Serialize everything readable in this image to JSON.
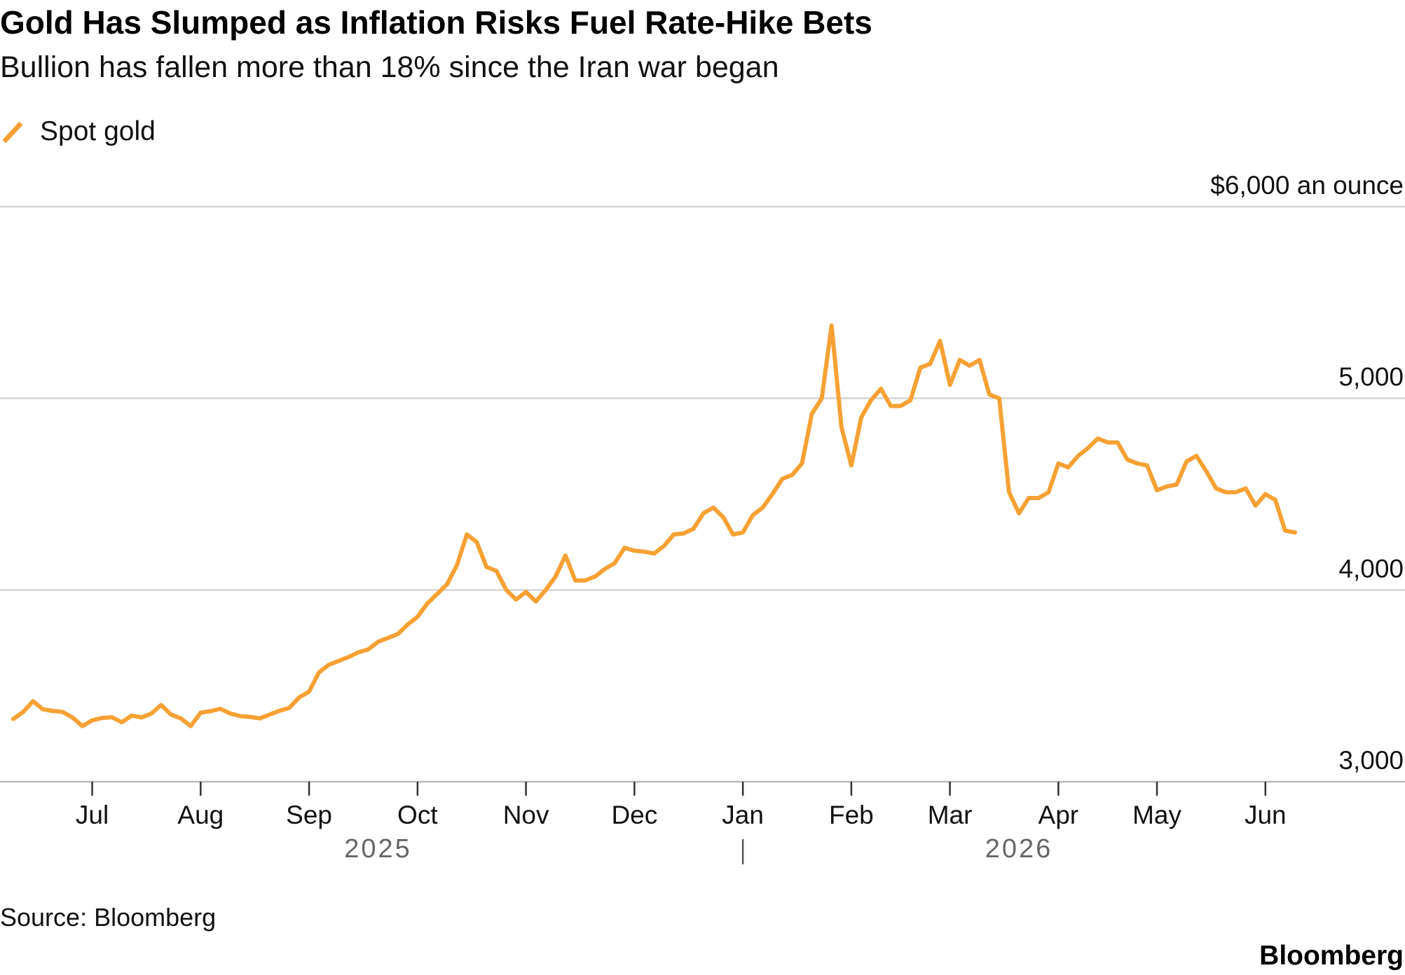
{
  "chart_data": {
    "type": "line",
    "title": "Gold Has Slumped as Inflation Risks Fuel Rate-Hike Bets",
    "subtitle": "Bullion has fallen more than 18% since the Iran war began",
    "source": "Source: Bloomberg",
    "brand": "Bloomberg",
    "categories": [
      null,
      null,
      null,
      null,
      null,
      null,
      null,
      null,
      "Jul",
      null,
      null,
      null,
      null,
      null,
      null,
      null,
      null,
      null,
      null,
      "Aug",
      null,
      null,
      null,
      null,
      null,
      null,
      null,
      null,
      null,
      null,
      "Sep",
      null,
      null,
      null,
      null,
      null,
      null,
      null,
      null,
      null,
      null,
      "Oct",
      null,
      null,
      null,
      null,
      null,
      null,
      null,
      null,
      null,
      null,
      "Nov",
      null,
      null,
      null,
      null,
      null,
      null,
      null,
      null,
      null,
      null,
      "Dec",
      null,
      null,
      null,
      null,
      null,
      null,
      null,
      null,
      null,
      null,
      "Jan",
      null,
      null,
      null,
      null,
      null,
      null,
      null,
      null,
      null,
      null,
      "Feb",
      null,
      null,
      null,
      null,
      null,
      null,
      null,
      null,
      null,
      "Mar",
      null,
      null,
      null,
      null,
      null,
      null,
      null,
      null,
      null,
      null,
      "Apr",
      null,
      null,
      null,
      null,
      null,
      null,
      null,
      null,
      null,
      "May",
      null,
      null,
      null,
      null,
      null,
      null,
      null,
      null,
      null,
      null,
      "Jun",
      null,
      null,
      null
    ],
    "x_groups": [
      {
        "label": "2025",
        "range": [
          0,
          74
        ]
      },
      {
        "label": "2026",
        "range": [
          74,
          130
        ]
      }
    ],
    "series": [
      {
        "name": "Spot gold",
        "color": "#f7a134",
        "values": [
          3327,
          3364,
          3420,
          3378,
          3369,
          3364,
          3335,
          3290,
          3320,
          3332,
          3336,
          3310,
          3345,
          3335,
          3355,
          3400,
          3350,
          3330,
          3290,
          3360,
          3368,
          3380,
          3356,
          3342,
          3338,
          3330,
          3350,
          3370,
          3385,
          3440,
          3470,
          3570,
          3610,
          3630,
          3650,
          3675,
          3690,
          3730,
          3750,
          3770,
          3820,
          3860,
          3930,
          3980,
          4030,
          4130,
          4290,
          4250,
          4120,
          4100,
          4000,
          3950,
          3990,
          3940,
          4000,
          4070,
          4180,
          4050,
          4050,
          4070,
          4110,
          4140,
          4220,
          4205,
          4200,
          4190,
          4230,
          4290,
          4295,
          4320,
          4400,
          4430,
          4380,
          4290,
          4300,
          4390,
          4430,
          4500,
          4580,
          4600,
          4660,
          4920,
          5000,
          5380,
          4850,
          4650,
          4900,
          4990,
          5050,
          4960,
          4960,
          4990,
          5160,
          5180,
          5300,
          5070,
          5200,
          5170,
          5200,
          5020,
          5000,
          4510,
          4400,
          4480,
          4480,
          4510,
          4660,
          4640,
          4700,
          4740,
          4790,
          4770,
          4770,
          4680,
          4660,
          4650,
          4520,
          4540,
          4550,
          4670,
          4700,
          4620,
          4530,
          4510,
          4510,
          4530,
          4440,
          4500,
          4470,
          4310,
          4300
        ]
      }
    ],
    "ylim": [
      3000,
      6000
    ],
    "yticks": [
      {
        "value": 3000,
        "label": "3,000"
      },
      {
        "value": 4000,
        "label": "4,000"
      },
      {
        "value": 5000,
        "label": "5,000"
      },
      {
        "value": 6000,
        "label": "$6,000 an ounce"
      }
    ],
    "grid": true
  }
}
